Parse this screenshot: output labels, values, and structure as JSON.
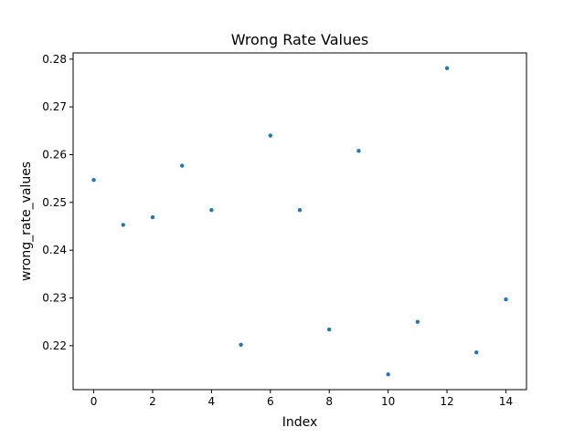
{
  "chart_data": {
    "type": "scatter",
    "title": "Wrong Rate Values",
    "xlabel": "Index",
    "ylabel": "wrong_rate_values",
    "x": [
      0,
      1,
      2,
      3,
      4,
      5,
      6,
      7,
      8,
      9,
      10,
      11,
      12,
      13,
      14
    ],
    "y": [
      0.2547,
      0.2453,
      0.2469,
      0.2577,
      0.2484,
      0.2202,
      0.264,
      0.2484,
      0.2234,
      0.2608,
      0.214,
      0.225,
      0.2781,
      0.2186,
      0.2297
    ],
    "xticks": [
      0,
      2,
      4,
      6,
      8,
      10,
      12,
      14
    ],
    "xtick_labels": [
      "0",
      "2",
      "4",
      "6",
      "8",
      "10",
      "12",
      "14"
    ],
    "yticks": [
      0.22,
      0.23,
      0.24,
      0.25,
      0.26,
      0.27,
      0.28
    ],
    "ytick_labels": [
      "0.22",
      "0.23",
      "0.24",
      "0.25",
      "0.26",
      "0.27",
      "0.28"
    ],
    "xlim": [
      -0.7,
      14.7
    ],
    "ylim": [
      0.2108,
      0.2813
    ],
    "grid": false,
    "marker_color": "#1f77b4"
  }
}
